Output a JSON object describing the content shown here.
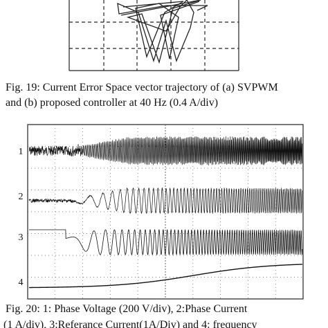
{
  "figure19": {
    "caption": [
      "Fig. 19: Current Error Space vector trajectory of (a) SVPWM",
      "and (b) proposed controller at 40 Hz (0.4 A/div)"
    ]
  },
  "figure20": {
    "channel_labels": [
      "1",
      "2",
      "3",
      "4"
    ],
    "caption": [
      "Fig. 20: 1: Phase Voltage (200 V/div), 2:Phase Current",
      "(1 A/div), 3:Referance Current(1A/Div) and 4: frequency"
    ]
  }
}
